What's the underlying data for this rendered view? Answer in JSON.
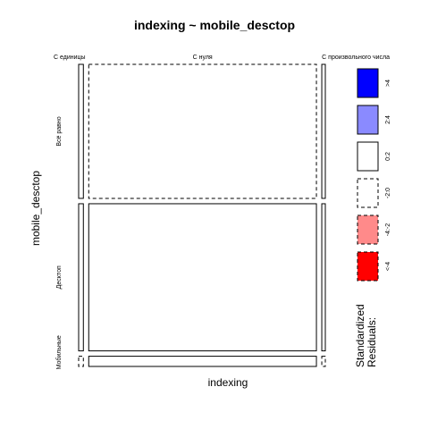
{
  "chart_data": {
    "type": "mosaic",
    "title": "indexing ~ mobile_desctop",
    "xlabel": "indexing",
    "ylabel": "mobile_desctop",
    "x_categories": [
      "С единицы",
      "С нуля",
      "С произвольного числа"
    ],
    "y_categories": [
      "Всё равно",
      "Десктоп",
      "Мобильные"
    ],
    "x_proportions": [
      0.02,
      0.965,
      0.015
    ],
    "y_proportions": [
      0.46,
      0.505,
      0.035
    ],
    "cells": [
      {
        "x": "С нуля",
        "y": "Всё равно",
        "residual_class": "-2:0"
      },
      {
        "x": "С нуля",
        "y": "Десктоп",
        "residual_class": "0:2"
      },
      {
        "x": "С нуля",
        "y": "Мобильные",
        "residual_class": "0:2"
      },
      {
        "x": "С единицы",
        "y": "Всё равно",
        "residual_class": "0:2"
      },
      {
        "x": "С единицы",
        "y": "Десктоп",
        "residual_class": "0:2"
      },
      {
        "x": "С единицы",
        "y": "Мобильные",
        "residual_class": "-2:0"
      },
      {
        "x": "С произвольного числа",
        "y": "Всё равно",
        "residual_class": "0:2"
      },
      {
        "x": "С произвольного числа",
        "y": "Десктоп",
        "residual_class": "0:2"
      },
      {
        "x": "С произвольного числа",
        "y": "Мобильные",
        "residual_class": "-2:0"
      }
    ],
    "legend": {
      "title": "Standardized Residuals:",
      "position": "right",
      "entries": [
        {
          "label": ">4",
          "fill": "#0000ff",
          "dashed": false
        },
        {
          "label": "2:4",
          "fill": "#8a8aff",
          "dashed": false
        },
        {
          "label": "0:2",
          "fill": "#ffffff",
          "dashed": false
        },
        {
          "label": "-2:0",
          "fill": "#ffffff",
          "dashed": true
        },
        {
          "label": "-4:-2",
          "fill": "#ff8a8a",
          "dashed": true
        },
        {
          "label": "<-4",
          "fill": "#ff0000",
          "dashed": true
        }
      ]
    }
  }
}
